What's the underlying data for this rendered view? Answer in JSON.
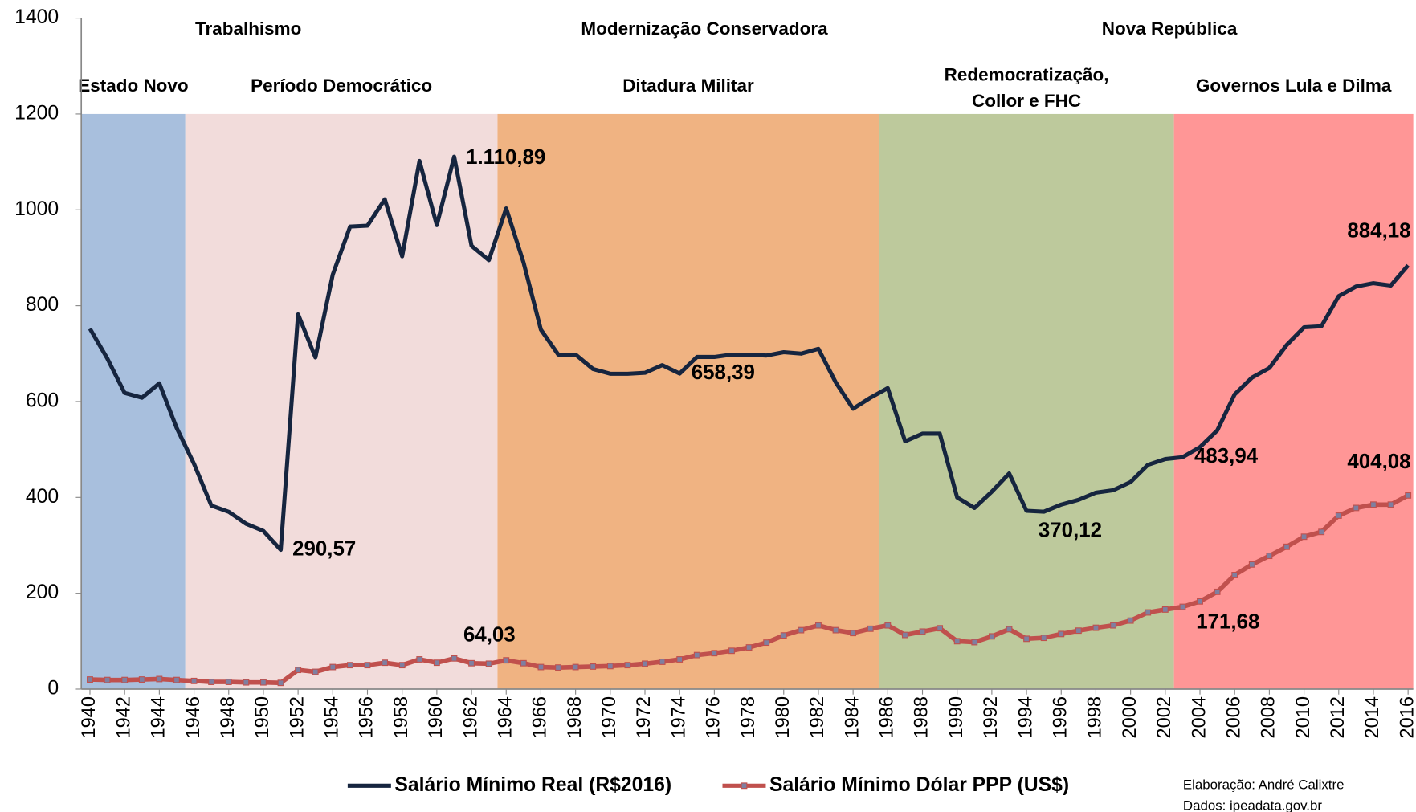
{
  "chart_data": {
    "type": "line",
    "x": [
      1940,
      1941,
      1942,
      1943,
      1944,
      1945,
      1946,
      1947,
      1948,
      1949,
      1950,
      1951,
      1952,
      1953,
      1954,
      1955,
      1956,
      1957,
      1958,
      1959,
      1960,
      1961,
      1962,
      1963,
      1964,
      1965,
      1966,
      1967,
      1968,
      1969,
      1970,
      1971,
      1972,
      1973,
      1974,
      1975,
      1976,
      1977,
      1978,
      1979,
      1980,
      1981,
      1982,
      1983,
      1984,
      1985,
      1986,
      1987,
      1988,
      1989,
      1990,
      1991,
      1992,
      1993,
      1994,
      1995,
      1996,
      1997,
      1998,
      1999,
      2000,
      2001,
      2002,
      2003,
      2004,
      2005,
      2006,
      2007,
      2008,
      2009,
      2010,
      2011,
      2012,
      2013,
      2014,
      2015,
      2016
    ],
    "series": [
      {
        "name": "Salário Mínimo Real (R$2016)",
        "color": "#16253f",
        "values": [
          752,
          690,
          618,
          608,
          638,
          545,
          470,
          383,
          370,
          345,
          330,
          290.57,
          782,
          692,
          865,
          965,
          967,
          1022,
          903,
          1102,
          968,
          1110.89,
          925,
          895,
          1003,
          890,
          750,
          698,
          698,
          668,
          658,
          658,
          660,
          676,
          658.39,
          693,
          693,
          698,
          698,
          696,
          703,
          700,
          710,
          640,
          585,
          608,
          628,
          517,
          533,
          533,
          400,
          378,
          412,
          450,
          372,
          370.12,
          385,
          395,
          410,
          415,
          432,
          468,
          480,
          483.94,
          505,
          540,
          615,
          650,
          670,
          718,
          755,
          757,
          820,
          840,
          847,
          842,
          884.18
        ],
        "value_labels": [
          null,
          null,
          null,
          null,
          null,
          null,
          null,
          null,
          null,
          null,
          null,
          "290,57",
          null,
          null,
          null,
          null,
          null,
          null,
          null,
          null,
          null,
          "1.110,89",
          null,
          null,
          null,
          null,
          null,
          null,
          null,
          null,
          null,
          null,
          null,
          null,
          "658,39",
          null,
          null,
          null,
          null,
          null,
          null,
          null,
          null,
          null,
          null,
          null,
          null,
          null,
          null,
          null,
          null,
          null,
          null,
          null,
          null,
          "370,12",
          null,
          null,
          null,
          null,
          null,
          null,
          null,
          "483,94",
          null,
          null,
          null,
          null,
          null,
          null,
          null,
          null,
          null,
          null,
          null,
          null,
          "884,18"
        ]
      },
      {
        "name": "Salário Mínimo Dólar PPP (US$)",
        "color": "#c0504d",
        "marker_color": "#7f7fa0",
        "values": [
          20,
          19,
          19,
          20,
          21,
          19,
          17,
          15,
          15,
          14,
          14,
          13,
          40,
          36,
          46,
          50,
          50,
          55,
          50,
          62,
          55,
          64.03,
          54,
          53,
          60,
          54,
          46,
          45,
          46,
          47,
          48,
          50,
          53,
          57,
          62,
          71,
          75,
          80,
          87,
          97,
          112,
          123,
          133,
          123,
          117,
          126,
          133,
          113,
          120,
          127,
          100,
          98,
          110,
          125,
          105,
          107,
          115,
          122,
          128,
          133,
          143,
          160,
          166,
          171.68,
          183,
          203,
          238,
          260,
          278,
          297,
          318,
          328,
          362,
          378,
          385,
          385,
          404.08
        ],
        "value_labels": [
          null,
          null,
          null,
          null,
          null,
          null,
          null,
          null,
          null,
          null,
          null,
          null,
          null,
          null,
          null,
          null,
          null,
          null,
          null,
          null,
          null,
          "64,03",
          null,
          null,
          null,
          null,
          null,
          null,
          null,
          null,
          null,
          null,
          null,
          null,
          null,
          null,
          null,
          null,
          null,
          null,
          null,
          null,
          null,
          null,
          null,
          null,
          null,
          null,
          null,
          null,
          null,
          null,
          null,
          null,
          null,
          null,
          null,
          null,
          null,
          null,
          null,
          null,
          null,
          "171,68",
          null,
          null,
          null,
          null,
          null,
          null,
          null,
          null,
          null,
          null,
          null,
          null,
          "404,08"
        ]
      }
    ],
    "xlim": [
      1939.5,
      2016.3
    ],
    "xticks": [
      1940,
      1942,
      1944,
      1946,
      1948,
      1950,
      1952,
      1954,
      1956,
      1958,
      1960,
      1962,
      1964,
      1966,
      1968,
      1970,
      1972,
      1974,
      1976,
      1978,
      1980,
      1982,
      1984,
      1986,
      1988,
      1990,
      1992,
      1994,
      1996,
      1998,
      2000,
      2002,
      2004,
      2006,
      2008,
      2010,
      2012,
      2014,
      2016
    ],
    "ylim": [
      0,
      1400
    ],
    "yticks": [
      0,
      200,
      400,
      600,
      800,
      1000,
      1200,
      1400
    ],
    "grid": false,
    "band_ylim": [
      0,
      1200
    ],
    "periods": [
      {
        "label": [
          "Estado Novo"
        ],
        "start": 1939.5,
        "end": 1945.5,
        "color": "#a8bfdd"
      },
      {
        "label": [
          "Período Democrático"
        ],
        "start": 1945.5,
        "end": 1963.5,
        "color": "#f2dcdb"
      },
      {
        "label": [
          "Ditadura Militar"
        ],
        "start": 1963.5,
        "end": 1985.5,
        "color": "#f0b382"
      },
      {
        "label": [
          "Redemocratização,",
          "Collor e FHC"
        ],
        "start": 1985.5,
        "end": 2002.5,
        "color": "#bdc99c"
      },
      {
        "label": [
          "Governos Lula e Dilma"
        ],
        "start": 2002.5,
        "end": 2016.3,
        "color": "#ff9696"
      }
    ],
    "eras": [
      "Trabalhismo",
      "Modernização Conservadora",
      "Nova República"
    ],
    "notes": [
      "Elaboração: André Calixtre",
      "Dados: ipeadata.gov.br"
    ]
  }
}
